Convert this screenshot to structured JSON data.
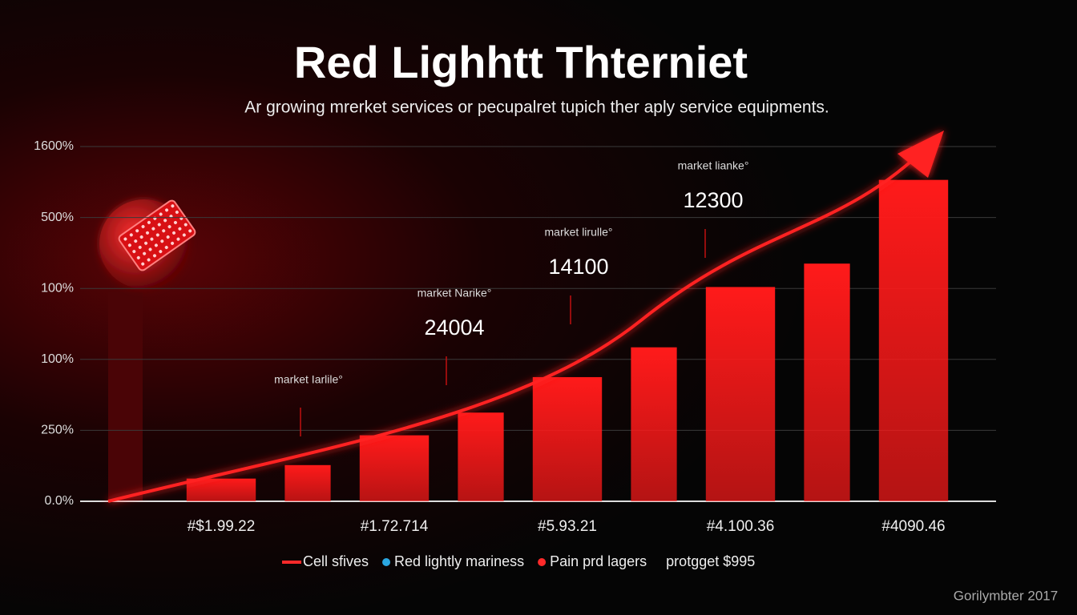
{
  "chart_data": {
    "type": "bar",
    "title": "Red Lighhtt Thterniet",
    "subtitle": "Ar growing mrerket services or pecupalret tupich ther aply service equipments.",
    "categories": [
      "#$1.99.22",
      null,
      "#1.72.714",
      null,
      "#5.93.21",
      null,
      "#4.100.36",
      null,
      "#4090.46"
    ],
    "values": [
      0.32,
      0.51,
      0.93,
      1.25,
      1.75,
      2.17,
      3.02,
      3.35,
      4.53
    ],
    "color": "#ff1a1a",
    "ylim": [
      0,
      5
    ],
    "yticks": [
      {
        "value": 0,
        "label": "0.0%"
      },
      {
        "value": 1,
        "label": "250%"
      },
      {
        "value": 2,
        "label": "100%"
      },
      {
        "value": 3,
        "label": "100%"
      },
      {
        "value": 4,
        "label": "500%"
      },
      {
        "value": 5,
        "label": "1600%"
      }
    ],
    "grid": true,
    "annotations": [
      {
        "label": "market Iarlile°"
      },
      {
        "label": "market Narike°",
        "number": "24004"
      },
      {
        "label": "market lirulle°",
        "number": "14100"
      },
      {
        "label": "market lianke°",
        "number": "12300"
      }
    ],
    "legend": [
      {
        "name": "Cell sfives",
        "color": "#ff2a2a",
        "marker": "line"
      },
      {
        "name": "Red lightly mariness",
        "color": "#2aa6e0",
        "marker": "dot"
      },
      {
        "name": "Pain prd lagers",
        "color": "#ff2a2a",
        "marker": "dot"
      },
      {
        "name": "protgget $995",
        "color": "#ffffff",
        "marker": "none"
      }
    ],
    "footer": "Gorilymbter 2017"
  }
}
